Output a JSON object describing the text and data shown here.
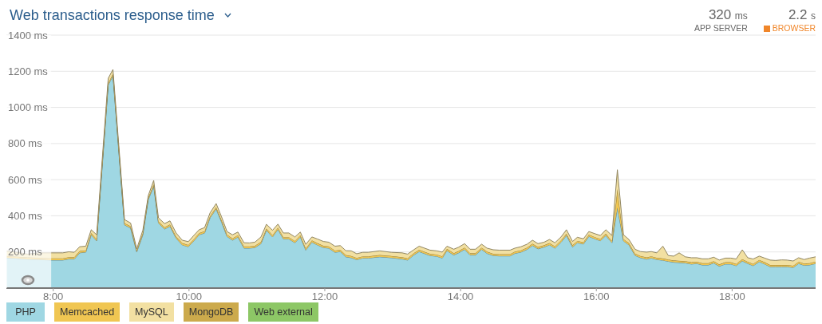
{
  "chart_data": {
    "type": "area",
    "title": "Web transactions response time",
    "annotations": [
      "320 ms",
      "APP SERVER",
      "2.2 s",
      "BROWSER"
    ],
    "stacked": true,
    "grid": "y",
    "legend": "bottom left",
    "xlim": [
      7.31,
      19.23
    ],
    "xticks": [
      {
        "value": 8,
        "label": "8:00"
      },
      {
        "value": 10,
        "label": "10:00"
      },
      {
        "value": 12,
        "label": "12:00"
      },
      {
        "value": 14,
        "label": "14:00"
      },
      {
        "value": 16,
        "label": "16:00"
      },
      {
        "value": 18,
        "label": "18:00"
      }
    ],
    "ylim": [
      0,
      1400
    ],
    "yticks": [
      {
        "value": 200,
        "label": "200 ms"
      },
      {
        "value": 400,
        "label": "400 ms"
      },
      {
        "value": 600,
        "label": "600 ms"
      },
      {
        "value": 800,
        "label": "800 ms"
      },
      {
        "value": 1000,
        "label": "1000 ms"
      },
      {
        "value": 1200,
        "label": "1200 ms"
      },
      {
        "value": 1400,
        "label": "1400 ms"
      }
    ],
    "bands": [
      {
        "axis": "x",
        "from": 7.31,
        "to": 7.97,
        "color": "#ffffff"
      }
    ],
    "x": [
      7.31,
      7.44,
      7.62,
      7.79,
      7.97,
      8.14,
      8.23,
      8.31,
      8.39,
      8.48,
      8.56,
      8.64,
      8.81,
      8.88,
      9.05,
      9.14,
      9.23,
      9.32,
      9.4,
      9.48,
      9.55,
      9.64,
      9.72,
      9.81,
      9.9,
      9.99,
      10.07,
      10.15,
      10.23,
      10.31,
      10.4,
      10.48,
      10.56,
      10.64,
      10.72,
      10.81,
      10.89,
      10.97,
      11.06,
      11.14,
      11.23,
      11.31,
      11.39,
      11.47,
      11.56,
      11.64,
      11.72,
      11.81,
      11.89,
      11.98,
      12.06,
      12.15,
      12.23,
      12.31,
      12.39,
      12.47,
      12.56,
      12.64,
      12.81,
      12.98,
      13.14,
      13.22,
      13.31,
      13.39,
      13.55,
      13.65,
      13.73,
      13.8,
      13.9,
      13.97,
      14.06,
      14.14,
      14.22,
      14.31,
      14.39,
      14.48,
      14.57,
      14.73,
      14.8,
      14.89,
      14.98,
      15.06,
      15.14,
      15.23,
      15.31,
      15.39,
      15.48,
      15.56,
      15.65,
      15.72,
      15.81,
      15.89,
      15.98,
      16.06,
      16.14,
      16.23,
      16.31,
      16.4,
      16.48,
      16.57,
      16.65,
      16.74,
      16.81,
      16.89,
      16.98,
      17.06,
      17.14,
      17.22,
      17.31,
      17.4,
      17.48,
      17.56,
      17.65,
      17.73,
      17.81,
      17.9,
      17.98,
      18.06,
      18.15,
      18.23,
      18.31,
      18.4,
      18.48,
      18.56,
      18.64,
      18.73,
      18.81,
      18.9,
      18.98,
      19.06,
      19.14,
      19.23
    ],
    "series": [
      {
        "name": "PHP",
        "color": "#9fd7e3",
        "values": [
          168,
          165,
          160,
          158,
          155,
          155,
          161,
          161,
          195,
          199,
          295,
          261,
          1124,
          1176,
          350,
          332,
          200,
          295,
          490,
          564,
          360,
          327,
          342,
          276,
          239,
          229,
          261,
          295,
          305,
          389,
          438,
          365,
          286,
          265,
          283,
          221,
          221,
          224,
          246,
          320,
          283,
          325,
          272,
          272,
          251,
          283,
          210,
          254,
          239,
          224,
          221,
          198,
          202,
          173,
          168,
          157,
          166,
          166,
          173,
          168,
          161,
          155,
          183,
          202,
          180,
          176,
          166,
          207,
          183,
          195,
          214,
          183,
          183,
          214,
          192,
          180,
          178,
          178,
          192,
          199,
          214,
          236,
          217,
          227,
          239,
          221,
          254,
          291,
          227,
          251,
          244,
          286,
          272,
          262,
          291,
          251,
          446,
          261,
          239,
          181,
          168,
          160,
          166,
          158,
          154,
          148,
          143,
          141,
          139,
          133,
          136,
          128,
          128,
          139,
          121,
          133,
          133,
          124,
          150,
          136,
          124,
          146,
          133,
          118,
          118,
          118,
          118,
          114,
          136,
          126,
          128,
          136
        ]
      },
      {
        "name": "Memcached",
        "color": "#f0c652",
        "values": [
          10,
          10,
          10,
          10,
          10,
          10,
          10,
          10,
          10,
          10,
          10,
          10,
          10,
          10,
          10,
          10,
          8,
          10,
          10,
          10,
          10,
          10,
          10,
          10,
          10,
          10,
          10,
          10,
          10,
          10,
          10,
          10,
          10,
          10,
          10,
          10,
          10,
          10,
          10,
          10,
          10,
          10,
          10,
          10,
          10,
          10,
          10,
          10,
          10,
          10,
          10,
          10,
          10,
          10,
          10,
          10,
          10,
          10,
          10,
          10,
          10,
          10,
          10,
          10,
          10,
          10,
          10,
          10,
          10,
          10,
          10,
          10,
          10,
          10,
          10,
          10,
          10,
          10,
          10,
          10,
          10,
          10,
          10,
          10,
          10,
          10,
          10,
          10,
          10,
          10,
          10,
          10,
          10,
          10,
          10,
          10,
          103,
          10,
          10,
          10,
          10,
          10,
          10,
          10,
          10,
          10,
          10,
          10,
          10,
          10,
          10,
          10,
          10,
          10,
          10,
          10,
          10,
          10,
          10,
          10,
          10,
          10,
          10,
          10,
          10,
          10,
          10,
          10,
          10,
          10,
          10,
          10
        ]
      },
      {
        "name": "MySQL",
        "color": "#f2e0a2",
        "values": [
          27,
          25,
          18,
          27,
          30,
          30,
          30,
          27,
          24,
          23,
          18,
          24,
          27,
          24,
          19,
          18,
          9,
          15,
          12,
          22,
          19,
          20,
          20,
          19,
          16,
          18,
          20,
          18,
          20,
          17,
          20,
          19,
          17,
          20,
          17,
          20,
          19,
          20,
          27,
          23,
          27,
          19,
          23,
          23,
          22,
          17,
          22,
          19,
          23,
          24,
          23,
          24,
          23,
          24,
          28,
          23,
          22,
          22,
          23,
          20,
          24,
          23,
          19,
          20,
          20,
          20,
          23,
          15,
          22,
          21,
          22,
          22,
          22,
          19,
          19,
          22,
          22,
          22,
          19,
          20,
          19,
          19,
          19,
          17,
          20,
          20,
          19,
          22,
          21,
          20,
          19,
          17,
          19,
          19,
          22,
          30,
          106,
          24,
          20,
          24,
          24,
          29,
          26,
          27,
          68,
          22,
          24,
          44,
          24,
          25,
          22,
          24,
          24,
          22,
          24,
          23,
          23,
          27,
          52,
          22,
          27,
          21,
          23,
          27,
          25,
          28,
          27,
          26,
          22,
          22,
          28,
          27
        ]
      },
      {
        "name": "MongoDB",
        "color": "#ccaa4c",
        "values": [
          null,
          null,
          null,
          null,
          null,
          null,
          null,
          null,
          null,
          null,
          null,
          null,
          null,
          null,
          null,
          null,
          null,
          null,
          null,
          null,
          null,
          null,
          null,
          null,
          null,
          null,
          null,
          null,
          null,
          null,
          null,
          null,
          null,
          null,
          null,
          null,
          null,
          null,
          null,
          null,
          null,
          null,
          null,
          null,
          null,
          null,
          null,
          null,
          null,
          null,
          null,
          null,
          null,
          null,
          null,
          null,
          null,
          null,
          null,
          null,
          null,
          null,
          null,
          null,
          null,
          null,
          null,
          null,
          null,
          null,
          null,
          null,
          null,
          null,
          null,
          null,
          null,
          null,
          null,
          null,
          null,
          null,
          null,
          null,
          null,
          null,
          null,
          null,
          null,
          null,
          null,
          null,
          null,
          null,
          null,
          null,
          null,
          null,
          null,
          null,
          null,
          null,
          null,
          null,
          null,
          null,
          null,
          null,
          null,
          null,
          null,
          null,
          null,
          null,
          null,
          null,
          null,
          null,
          null,
          null,
          null,
          null,
          null,
          null,
          null,
          null,
          null,
          null,
          null,
          null,
          null,
          null
        ]
      },
      {
        "name": "Web external",
        "color": "#8dc766",
        "values": [
          null,
          null,
          null,
          null,
          null,
          null,
          null,
          null,
          null,
          null,
          null,
          null,
          null,
          null,
          null,
          null,
          null,
          null,
          null,
          null,
          null,
          null,
          null,
          null,
          null,
          null,
          null,
          null,
          null,
          null,
          null,
          null,
          null,
          null,
          null,
          null,
          null,
          null,
          null,
          null,
          null,
          null,
          null,
          null,
          null,
          null,
          null,
          null,
          null,
          null,
          null,
          null,
          null,
          null,
          null,
          null,
          null,
          null,
          null,
          null,
          null,
          null,
          null,
          null,
          null,
          null,
          null,
          null,
          null,
          null,
          null,
          null,
          null,
          null,
          null,
          null,
          null,
          null,
          null,
          null,
          null,
          null,
          null,
          null,
          null,
          null,
          null,
          null,
          null,
          null,
          null,
          null,
          null,
          null,
          null,
          null,
          null,
          null,
          null,
          null,
          null,
          null,
          null,
          null,
          null,
          null,
          null,
          null,
          null,
          null,
          null,
          null,
          null,
          null,
          null,
          null,
          null,
          null,
          null,
          null,
          null,
          null,
          null,
          null,
          null,
          null,
          null,
          null,
          null,
          null,
          null,
          null
        ]
      }
    ]
  }
}
